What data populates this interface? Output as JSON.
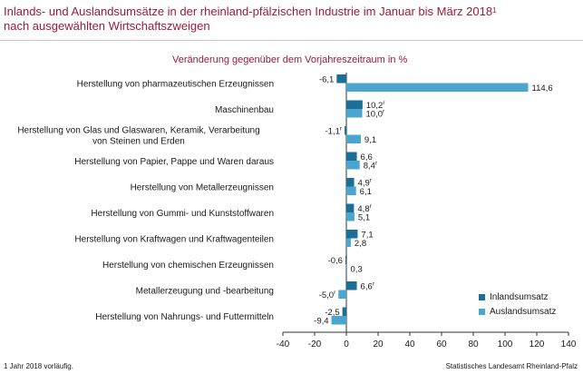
{
  "header": {
    "title_line1": "Inlands- und Auslandsumsätze in der rheinland-pfälzischen Industrie im Januar bis März 2018",
    "title_sup": "1",
    "title_line2": "nach ausgewählten Wirtschaftszweigen"
  },
  "footnote": "1 Jahr 2018 vorläufig.",
  "source": "Statistisches Landesamt Rheinland-Pfalz",
  "colors": {
    "inland": "#1b6e95",
    "ausland": "#4aa5cf",
    "title": "#9b1b3a"
  },
  "chart_data": {
    "type": "bar",
    "orientation": "horizontal",
    "title": "Veränderung gegenüber dem Vorjahreszeitraum in %",
    "xlim": [
      -40,
      140
    ],
    "xticks": [
      "-40",
      "-20",
      "0",
      "20",
      "40",
      "60",
      "80",
      "100",
      "120",
      "140"
    ],
    "grid": false,
    "legend_position": "bottom-right",
    "categories": [
      "Herstellung von pharmazeutischen Erzeugnissen",
      "Maschinenbau",
      "Herstellung von Glas und Glaswaren, Keramik, Verarbeitung von Steinen und Erden",
      "Herstellung von Papier, Pappe und Waren daraus",
      "Herstellung von Metallerzeugnissen",
      "Herstellung von Gummi- und Kunststoffwaren",
      "Herstellung von Kraftwagen und Kraftwagenteilen",
      "Herstellung von chemischen Erzeugnissen",
      "Metallerzeugung und -bearbeitung",
      "Herstellung von Nahrungs- und Futtermitteln"
    ],
    "category_lines": [
      [
        "Herstellung von pharmazeutischen Erzeugnissen"
      ],
      [
        "Maschinenbau"
      ],
      [
        "Herstellung von Glas und Glaswaren, Keramik, Verarbeitung",
        "von Steinen und Erden"
      ],
      [
        "Herstellung von Papier, Pappe und Waren daraus"
      ],
      [
        "Herstellung von Metallerzeugnissen"
      ],
      [
        "Herstellung von Gummi- und Kunststoffwaren"
      ],
      [
        "Herstellung von Kraftwagen und Kraftwagenteilen"
      ],
      [
        "Herstellung von chemischen Erzeugnissen"
      ],
      [
        "Metallerzeugung und -bearbeitung"
      ],
      [
        "Herstellung von Nahrungs- und Futtermitteln"
      ]
    ],
    "series": [
      {
        "name": "Inlandsumsatz",
        "values": [
          -6.1,
          10.2,
          -1.1,
          6.6,
          4.9,
          4.8,
          7.1,
          -0.6,
          6.6,
          -2.5
        ],
        "labels": [
          "-6,1",
          "10,2",
          "-1,1",
          "6,6",
          "4,9",
          "4,8",
          "7,1",
          "-0,6",
          "6,6",
          "-2,5"
        ],
        "flags": [
          "",
          "r",
          "r",
          "",
          "r",
          "r",
          "",
          "",
          "r",
          ""
        ]
      },
      {
        "name": "Auslandsumsatz",
        "values": [
          114.6,
          10.0,
          9.1,
          8.4,
          6.1,
          5.1,
          2.8,
          0.3,
          -5.0,
          -9.4
        ],
        "labels": [
          "114,6",
          "10,0",
          "9,1",
          "8,4",
          "6,1",
          "5,1",
          "2,8",
          "0,3",
          "-5,0",
          "-9,4"
        ],
        "flags": [
          "",
          "r",
          "",
          "r",
          "",
          "",
          "",
          "",
          "r",
          ""
        ]
      }
    ]
  }
}
